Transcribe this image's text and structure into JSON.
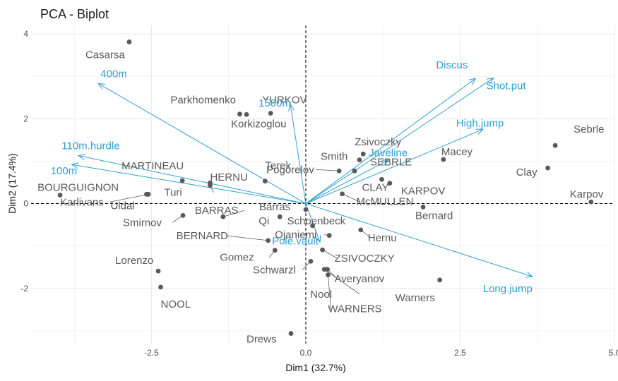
{
  "chart_data": {
    "type": "scatter",
    "title": "PCA - Biplot",
    "xlabel": "Dim1 (32.7%)",
    "ylabel": "Dim2 (17.4%)",
    "xlim": [
      -4.45,
      5.0
    ],
    "ylim": [
      -3.3,
      4.2
    ],
    "x_ticks": [
      -2.5,
      0.0,
      2.5,
      5.0
    ],
    "x_tick_labels": [
      "-2.5",
      "0.0",
      "2.5",
      "5.0"
    ],
    "y_ticks": [
      -2,
      0,
      2,
      4
    ],
    "y_tick_labels": [
      "-2",
      "0",
      "2",
      "4"
    ],
    "grid": true,
    "reference_lines": {
      "x": 0,
      "y": 0,
      "style": "dashed"
    },
    "colors": {
      "points": "#595959",
      "variables": "#2e9fd1",
      "grid": "#ebebeb",
      "text": "#1a1a1a"
    },
    "points": [
      {
        "label": "SEBRLE",
        "x": 0.79,
        "y": 0.77
      },
      {
        "label": "CLAY",
        "x": 1.23,
        "y": 0.57
      },
      {
        "label": "KARPOV",
        "x": 1.36,
        "y": 0.48
      },
      {
        "label": "BERNARD",
        "x": -0.61,
        "y": -0.87
      },
      {
        "label": "YURKOV",
        "x": -0.57,
        "y": 2.13
      },
      {
        "label": "WARNERS",
        "x": 0.36,
        "y": -1.68
      },
      {
        "label": "ZSIVOCZKY",
        "x": 0.27,
        "y": -1.09
      },
      {
        "label": "McMULLEN",
        "x": 0.59,
        "y": 0.23
      },
      {
        "label": "MARTINEAU",
        "x": -2.0,
        "y": 0.54
      },
      {
        "label": "HERNU",
        "x": -1.55,
        "y": 0.49
      },
      {
        "label": "BARRAS",
        "x": -1.34,
        "y": -0.31
      },
      {
        "label": "NOOL",
        "x": -2.35,
        "y": -1.97
      },
      {
        "label": "BOURGUIGNON",
        "x": -3.98,
        "y": 0.2
      },
      {
        "label": "Sebrle",
        "x": 4.04,
        "y": 1.37
      },
      {
        "label": "Clay",
        "x": 3.92,
        "y": 0.84
      },
      {
        "label": "Karpov",
        "x": 4.62,
        "y": 0.04
      },
      {
        "label": "Macey",
        "x": 2.23,
        "y": 1.04
      },
      {
        "label": "Warners",
        "x": 2.17,
        "y": -1.8
      },
      {
        "label": "Zsivoczky",
        "x": 0.93,
        "y": 1.17
      },
      {
        "label": "Hernu",
        "x": 0.89,
        "y": -0.62
      },
      {
        "label": "Nool",
        "x": 0.3,
        "y": -1.55
      },
      {
        "label": "Bernard",
        "x": 1.9,
        "y": -0.08
      },
      {
        "label": "Schwarzl",
        "x": 0.08,
        "y": -1.36
      },
      {
        "label": "Pogorelov",
        "x": 0.54,
        "y": 0.77
      },
      {
        "label": "Schoenbeck",
        "x": 0.11,
        "y": -0.52
      },
      {
        "label": "Barras",
        "x": 0.0,
        "y": -0.14
      },
      {
        "label": "Smith",
        "x": 0.87,
        "y": 1.03
      },
      {
        "label": "Averyanov",
        "x": 0.35,
        "y": -1.55
      },
      {
        "label": "Ojaniemi",
        "x": 0.38,
        "y": -0.75
      },
      {
        "label": "Smirnov",
        "x": -1.99,
        "y": -0.28
      },
      {
        "label": "Qi",
        "x": -0.42,
        "y": -0.31
      },
      {
        "label": "Drews",
        "x": -0.24,
        "y": -3.06
      },
      {
        "label": "Parkhomenko",
        "x": -1.07,
        "y": 2.11
      },
      {
        "label": "Terek",
        "x": -0.66,
        "y": 0.53
      },
      {
        "label": "Gomez",
        "x": -0.5,
        "y": -1.1
      },
      {
        "label": "Turi",
        "x": -1.55,
        "y": 0.43
      },
      {
        "label": "Lorenzo",
        "x": -2.39,
        "y": -1.59
      },
      {
        "label": "Karlivans",
        "x": -2.55,
        "y": 0.22
      },
      {
        "label": "Korkizoglou",
        "x": -0.96,
        "y": 2.1
      },
      {
        "label": "Uldal",
        "x": -2.58,
        "y": 0.22
      },
      {
        "label": "Casarsa",
        "x": -2.86,
        "y": 3.81
      }
    ],
    "variables": [
      {
        "label": "100m",
        "x": -3.79,
        "y": 0.92
      },
      {
        "label": "Long.jump",
        "x": 3.67,
        "y": -1.72
      },
      {
        "label": "Shot.put",
        "x": 3.04,
        "y": 2.96
      },
      {
        "label": "High.jump",
        "x": 2.87,
        "y": 1.75
      },
      {
        "label": "400m",
        "x": -3.36,
        "y": 2.83
      },
      {
        "label": "110m.hurdle",
        "x": -3.68,
        "y": 1.13
      },
      {
        "label": "Discus",
        "x": 2.75,
        "y": 2.95
      },
      {
        "label": "Pole.vault",
        "x": 0.23,
        "y": -0.91
      },
      {
        "label": "Javeline",
        "x": 1.34,
        "y": 1.03
      },
      {
        "label": "1500m",
        "x": -0.25,
        "y": 2.34
      }
    ]
  }
}
